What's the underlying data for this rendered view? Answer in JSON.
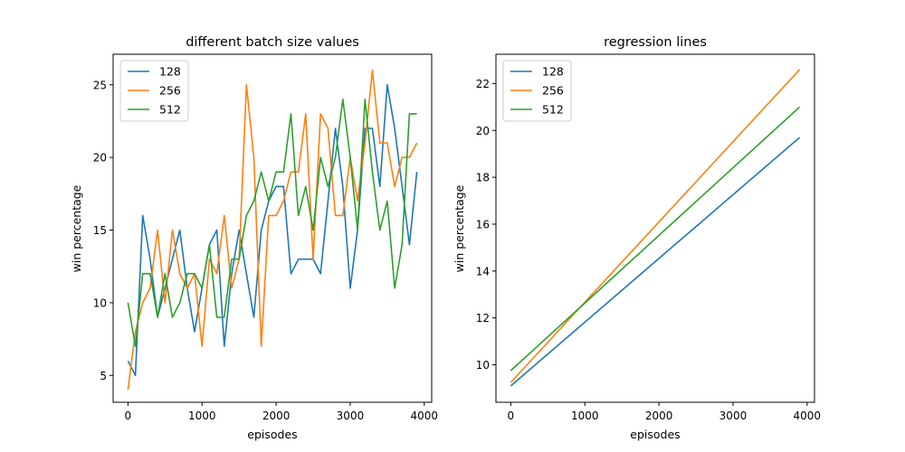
{
  "chart_data": [
    {
      "type": "line",
      "title": "different batch size values",
      "xlabel": "episodes",
      "ylabel": "win percentage",
      "xlim": [
        -200,
        4100
      ],
      "ylim": [
        3.15,
        27.1
      ],
      "xticks": [
        0,
        1000,
        2000,
        3000,
        4000
      ],
      "yticks": [
        5,
        10,
        15,
        20,
        25
      ],
      "legend": "top-left",
      "x": [
        0,
        100,
        200,
        300,
        400,
        500,
        600,
        700,
        800,
        900,
        1000,
        1100,
        1200,
        1300,
        1400,
        1500,
        1600,
        1700,
        1800,
        1900,
        2000,
        2100,
        2200,
        2300,
        2400,
        2500,
        2600,
        2700,
        2800,
        2900,
        3000,
        3100,
        3200,
        3300,
        3400,
        3500,
        3600,
        3700,
        3800,
        3900
      ],
      "series": [
        {
          "name": "128",
          "color": "#1f77b4",
          "values": [
            6,
            5,
            16,
            13,
            9,
            11,
            13,
            15,
            11,
            8,
            11,
            14,
            15,
            7,
            12,
            15,
            12,
            9,
            15,
            17,
            18,
            18,
            12,
            13,
            13,
            13,
            12,
            17,
            22,
            18,
            11,
            15,
            22,
            22,
            18,
            25,
            22,
            18,
            14,
            19
          ]
        },
        {
          "name": "256",
          "color": "#ff7f0e",
          "values": [
            4,
            8,
            10,
            11,
            15,
            10,
            15,
            12,
            11,
            12,
            7,
            13,
            12,
            16,
            11,
            13,
            25,
            20,
            7,
            16,
            16,
            17,
            19,
            19,
            23,
            13,
            23,
            22,
            16,
            16,
            20,
            17,
            21,
            26,
            21,
            21,
            18,
            20,
            20,
            21
          ]
        },
        {
          "name": "512",
          "color": "#2ca02c",
          "values": [
            10,
            7,
            12,
            12,
            9,
            12,
            9,
            10,
            12,
            12,
            11,
            14,
            9,
            9,
            13,
            13,
            16,
            17,
            19,
            17,
            19,
            19,
            23,
            16,
            18,
            15,
            20,
            18,
            20,
            24,
            20,
            15,
            24,
            19,
            15,
            17,
            11,
            14,
            23,
            23
          ]
        }
      ]
    },
    {
      "type": "line",
      "title": "regression lines",
      "xlabel": "episodes",
      "ylabel": "win percentage",
      "xlim": [
        -200,
        4100
      ],
      "ylim": [
        8.4,
        23.25
      ],
      "xticks": [
        0,
        1000,
        2000,
        3000,
        4000
      ],
      "yticks": [
        10,
        12,
        14,
        16,
        18,
        20,
        22
      ],
      "legend": "top-left",
      "x": [
        0,
        3900
      ],
      "series": [
        {
          "name": "128",
          "color": "#1f77b4",
          "values": [
            9.1,
            19.7
          ]
        },
        {
          "name": "256",
          "color": "#ff7f0e",
          "values": [
            9.25,
            22.6
          ]
        },
        {
          "name": "512",
          "color": "#2ca02c",
          "values": [
            9.75,
            21.0
          ]
        }
      ]
    }
  ]
}
